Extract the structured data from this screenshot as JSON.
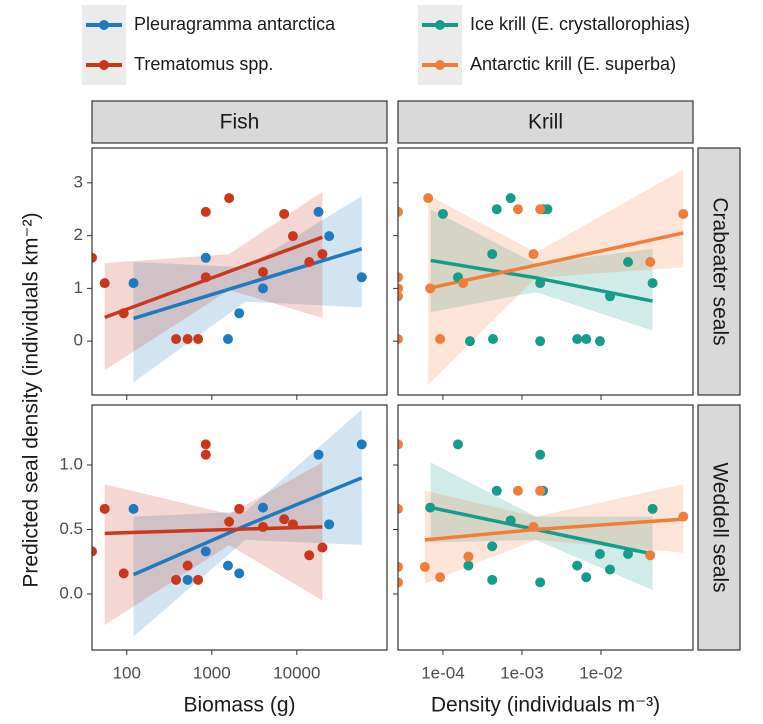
{
  "chart_data": {
    "type": "scatter",
    "y_label": "Predicted seal density (individuals km⁻²)",
    "log_x": true,
    "columns": [
      {
        "title": "Fish",
        "x_label": "Biomass (g)",
        "xlim": [
          39,
          115000
        ],
        "xticks": [
          100,
          1000,
          10000
        ],
        "series": [
          {
            "name": "Pleuragramma antarctica",
            "color": "#1f7ac0"
          },
          {
            "name": "Trematomus spp.",
            "color": "#c9381c"
          }
        ]
      },
      {
        "title": "Krill",
        "x_label": "Density (individuals m⁻³)",
        "xlim": [
          2.7e-05,
          0.146
        ],
        "xticks": [
          {
            "value": 0.0001,
            "label": "1e-04"
          },
          {
            "value": 0.001,
            "label": "1e-03"
          },
          {
            "value": 0.01,
            "label": "1e-02"
          }
        ],
        "series": [
          {
            "name": "Ice krill (E. crystallorophias)",
            "color": "#169c8b"
          },
          {
            "name": "Antarctic krill (E. superba)",
            "color": "#ef7e3a"
          }
        ]
      }
    ],
    "rows": [
      {
        "title": "Crabeater seals",
        "ylim": [
          -1.02,
          3.66
        ],
        "yticks": [
          0,
          1,
          2,
          3
        ]
      },
      {
        "title": "Weddell seals",
        "ylim": [
          -0.434,
          1.465
        ],
        "yticks": [
          {
            "value": 0,
            "label": "0.0"
          },
          {
            "value": 0.5,
            "label": "0.5"
          },
          {
            "value": 1,
            "label": "1.0"
          }
        ]
      }
    ],
    "panels": [
      [
        {
          "series": [
            {
              "x": [
                120,
                850,
                1550,
                2100,
                4000,
                18000,
                24000,
                58000
              ],
              "y": [
                1.1,
                1.58,
                0.04,
                0.53,
                1.0,
                2.45,
                1.99,
                1.21
              ],
              "fit": {
                "x": [
                  120,
                  2500,
                  58000
                ],
                "y": [
                  0.43,
                  1.08,
                  1.75
                ],
                "lower": [
                  -0.78,
                  0.75,
                  0.64
                ],
                "upper": [
                  1.5,
                  1.4,
                  2.75
                ]
              }
            },
            {
              "x": [
                39,
                55,
                92,
                380,
                520,
                690,
                850,
                850,
                1600,
                4000,
                7100,
                9000,
                14000,
                20000
              ],
              "y": [
                1.58,
                1.1,
                0.53,
                0.04,
                0.04,
                0.04,
                2.45,
                1.21,
                2.71,
                1.31,
                2.41,
                1.99,
                1.5,
                1.65
              ],
              "fit": {
                "x": [
                  55,
                  1600,
                  20000
                ],
                "y": [
                  0.45,
                  1.32,
                  1.97
                ],
                "lower": [
                  -0.55,
                  0.97,
                  0.44
                ],
                "upper": [
                  1.48,
                  1.65,
                  2.83
                ]
              }
            }
          ]
        },
        {
          "series": [
            {
              "x": [
                0.0001,
                0.000155,
                0.00022,
                0.00042,
                0.00043,
                0.00048,
                0.00072,
                0.0017,
                0.0017,
                0.00185,
                0.0021,
                0.005,
                0.0065,
                0.0097,
                0.013,
                0.022,
                0.045
              ],
              "y": [
                2.41,
                1.21,
                0.0,
                1.65,
                0.04,
                2.5,
                2.71,
                1.1,
                0.0,
                2.5,
                2.5,
                0.04,
                0.04,
                0.0,
                0.85,
                1.5,
                1.1
              ],
              "fit": {
                "x": [
                  7e-05,
                  0.0015,
                  0.045
                ],
                "y": [
                  1.53,
                  1.2,
                  0.76
                ],
                "lower": [
                  0.55,
                  0.93,
                  0.2
                ],
                "upper": [
                  2.5,
                  1.47,
                  1.75
                ]
              }
            },
            {
              "x": [
                2.7e-05,
                2.7e-05,
                2.7e-05,
                2.7e-05,
                2.7e-05,
                6.5e-05,
                6.9e-05,
                9.2e-05,
                0.00018,
                0.00089,
                0.0014,
                0.0017,
                0.042,
                0.11
              ],
              "y": [
                2.45,
                1.21,
                1.0,
                0.85,
                0.04,
                2.71,
                1.0,
                0.04,
                1.1,
                2.5,
                1.65,
                2.5,
                1.5,
                2.41
              ],
              "fit": {
                "x": [
                  6.5e-05,
                  0.0015,
                  0.11
                ],
                "y": [
                  1.0,
                  1.44,
                  2.05
                ],
                "lower": [
                  -0.83,
                  1.2,
                  1.4
                ],
                "upper": [
                  2.77,
                  1.68,
                  3.25
                ]
              }
            }
          ]
        }
      ],
      [
        {
          "series": [
            {
              "x": [
                120,
                520,
                850,
                1550,
                2100,
                4000,
                18000,
                24000,
                58000
              ],
              "y": [
                0.66,
                0.11,
                0.33,
                0.22,
                0.16,
                0.67,
                1.08,
                0.54,
                1.16
              ],
              "fit": {
                "x": [
                  120,
                  2500,
                  58000
                ],
                "y": [
                  0.15,
                  0.53,
                  0.9
                ],
                "lower": [
                  -0.33,
                  0.42,
                  0.38
                ],
                "upper": [
                  0.6,
                  0.64,
                  1.43
                ]
              }
            },
            {
              "x": [
                39,
                55,
                92,
                380,
                520,
                690,
                850,
                850,
                1600,
                2100,
                4000,
                7100,
                9000,
                14000,
                20000
              ],
              "y": [
                0.33,
                0.66,
                0.16,
                0.11,
                0.22,
                0.11,
                1.16,
                1.08,
                0.56,
                0.66,
                0.52,
                0.58,
                0.54,
                0.3,
                0.36
              ],
              "fit": {
                "x": [
                  55,
                  1600,
                  20000
                ],
                "y": [
                  0.47,
                  0.5,
                  0.52
                ],
                "lower": [
                  -0.24,
                  0.38,
                  -0.05
                ],
                "upper": [
                  0.85,
                  0.62,
                  1.02
                ]
              }
            }
          ]
        },
        {
          "series": [
            {
              "x": [
                6.9e-05,
                0.000155,
                0.00021,
                0.00042,
                0.00042,
                0.00048,
                0.00072,
                0.0017,
                0.0017,
                0.00185,
                0.005,
                0.0065,
                0.0097,
                0.013,
                0.022,
                0.045
              ],
              "y": [
                0.67,
                1.16,
                0.22,
                0.37,
                0.11,
                0.8,
                0.57,
                1.08,
                0.09,
                0.8,
                0.22,
                0.13,
                0.31,
                0.19,
                0.31,
                0.66
              ],
              "fit": {
                "x": [
                  7e-05,
                  0.0015,
                  0.045
                ],
                "y": [
                  0.67,
                  0.5,
                  0.31
                ],
                "lower": [
                  0.4,
                  0.42,
                  0.03
                ],
                "upper": [
                  1.02,
                  0.6,
                  0.6
                ]
              }
            },
            {
              "x": [
                2.7e-05,
                2.7e-05,
                2.7e-05,
                2.7e-05,
                5.9e-05,
                9.2e-05,
                0.00021,
                0.00089,
                0.0014,
                0.0017,
                0.042,
                0.11
              ],
              "y": [
                1.16,
                0.66,
                0.21,
                0.09,
                0.21,
                0.13,
                0.29,
                0.8,
                0.52,
                0.8,
                0.3,
                0.6
              ],
              "fit": {
                "x": [
                  5.9e-05,
                  0.0015,
                  0.11
                ],
                "y": [
                  0.42,
                  0.5,
                  0.58
                ],
                "lower": [
                  0.08,
                  0.42,
                  0.32
                ],
                "upper": [
                  0.8,
                  0.6,
                  0.85
                ]
              }
            }
          ]
        }
      ]
    ]
  }
}
